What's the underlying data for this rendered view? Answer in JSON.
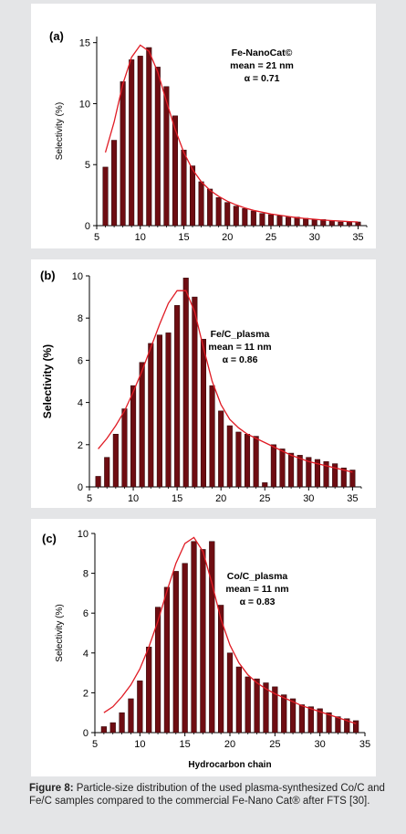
{
  "chart_data": [
    {
      "type": "bar",
      "panel_label": "(a)",
      "title": "",
      "xlabel": "",
      "ylabel": "Selectivity (%)",
      "xlim": [
        5,
        36
      ],
      "ylim": [
        0,
        15.5
      ],
      "xticks": [
        5,
        10,
        15,
        20,
        25,
        30,
        35
      ],
      "yticks": [
        0,
        5,
        10,
        15
      ],
      "x": [
        6,
        7,
        8,
        9,
        10,
        11,
        12,
        13,
        14,
        15,
        16,
        17,
        18,
        19,
        20,
        21,
        22,
        23,
        24,
        25,
        26,
        27,
        28,
        29,
        30,
        31,
        32,
        33,
        34,
        35
      ],
      "values": [
        4.8,
        7.0,
        11.8,
        13.6,
        13.9,
        14.6,
        13.0,
        11.4,
        9.0,
        6.2,
        4.9,
        3.6,
        3.0,
        2.3,
        1.9,
        1.6,
        1.4,
        1.2,
        1.0,
        0.9,
        0.8,
        0.7,
        0.7,
        0.6,
        0.5,
        0.5,
        0.4,
        0.3,
        0.3,
        0.3
      ],
      "fit": [
        6.0,
        8.5,
        11.6,
        13.8,
        14.8,
        14.3,
        12.6,
        10.2,
        7.9,
        6.0,
        4.6,
        3.6,
        2.9,
        2.4,
        2.0,
        1.7,
        1.45,
        1.25,
        1.1,
        0.95,
        0.85,
        0.75,
        0.65,
        0.58,
        0.52,
        0.46,
        0.41,
        0.37,
        0.33,
        0.3
      ],
      "annotation": [
        "Fe-NanoCat©",
        "mean = 21 nm",
        "α = 0.71"
      ],
      "colors": {
        "bar": "#6e0d12",
        "fit": "#e01b24"
      }
    },
    {
      "type": "bar",
      "panel_label": "(b)",
      "title": "",
      "xlabel": "",
      "ylabel": "Selectivity (%)",
      "xlim": [
        5,
        36
      ],
      "ylim": [
        0,
        10
      ],
      "xticks": [
        5,
        10,
        15,
        20,
        25,
        30,
        35
      ],
      "yticks": [
        0,
        2,
        4,
        6,
        8,
        10
      ],
      "x": [
        6,
        7,
        8,
        9,
        10,
        11,
        12,
        13,
        14,
        15,
        16,
        17,
        18,
        19,
        20,
        21,
        22,
        23,
        24,
        25,
        26,
        27,
        28,
        29,
        30,
        31,
        32,
        33,
        34,
        35
      ],
      "values": [
        0.5,
        1.4,
        2.5,
        3.7,
        4.8,
        5.9,
        6.8,
        7.2,
        7.3,
        8.6,
        9.9,
        9.0,
        7.0,
        4.8,
        3.6,
        2.9,
        2.6,
        2.5,
        2.4,
        0.2,
        2.0,
        1.8,
        1.6,
        1.5,
        1.4,
        1.3,
        1.2,
        1.1,
        0.9,
        0.8
      ],
      "fit": [
        1.8,
        2.3,
        2.9,
        3.6,
        4.5,
        5.5,
        6.6,
        7.7,
        8.7,
        9.3,
        9.3,
        8.3,
        6.6,
        5.0,
        3.9,
        3.2,
        2.8,
        2.5,
        2.3,
        2.1,
        1.9,
        1.7,
        1.5,
        1.35,
        1.2,
        1.1,
        1.0,
        0.9,
        0.8,
        0.7
      ],
      "annotation": [
        "Fe/C_plasma",
        "mean = 11 nm",
        "α = 0.86"
      ],
      "colors": {
        "bar": "#6e0d12",
        "fit": "#e01b24"
      }
    },
    {
      "type": "bar",
      "panel_label": "(c)",
      "title": "",
      "xlabel": "Hydrocarbon chain",
      "ylabel": "Selectivity (%)",
      "xlim": [
        5,
        35
      ],
      "ylim": [
        0,
        10
      ],
      "xticks": [
        5,
        10,
        15,
        20,
        25,
        30,
        35
      ],
      "yticks": [
        0,
        2,
        4,
        6,
        8,
        10
      ],
      "x": [
        6,
        7,
        8,
        9,
        10,
        11,
        12,
        13,
        14,
        15,
        16,
        17,
        18,
        19,
        20,
        21,
        22,
        23,
        24,
        25,
        26,
        27,
        28,
        29,
        30,
        31,
        32,
        33,
        34
      ],
      "values": [
        0.3,
        0.5,
        1.0,
        1.7,
        2.6,
        4.3,
        6.3,
        7.3,
        8.1,
        8.5,
        9.6,
        9.2,
        9.6,
        6.4,
        4.0,
        3.3,
        2.8,
        2.7,
        2.5,
        2.3,
        1.9,
        1.7,
        1.4,
        1.3,
        1.2,
        1.0,
        0.8,
        0.7,
        0.6
      ],
      "fit": [
        1.0,
        1.3,
        1.8,
        2.4,
        3.2,
        4.3,
        5.6,
        7.1,
        8.5,
        9.5,
        9.8,
        9.1,
        7.5,
        5.7,
        4.4,
        3.5,
        2.9,
        2.5,
        2.2,
        1.95,
        1.75,
        1.55,
        1.35,
        1.2,
        1.05,
        0.9,
        0.75,
        0.6,
        0.45
      ],
      "annotation": [
        "Co/C_plasma",
        "mean = 11 nm",
        "α = 0.83"
      ],
      "colors": {
        "bar": "#6e0d12",
        "fit": "#e01b24"
      }
    }
  ],
  "caption": {
    "figure_label": "Figure 8:",
    "text": " Particle-size distribution of the used plasma-synthesized Co/C and Fe/C samples compared to the commercial Fe-Nano Cat® after FTS [30]."
  }
}
